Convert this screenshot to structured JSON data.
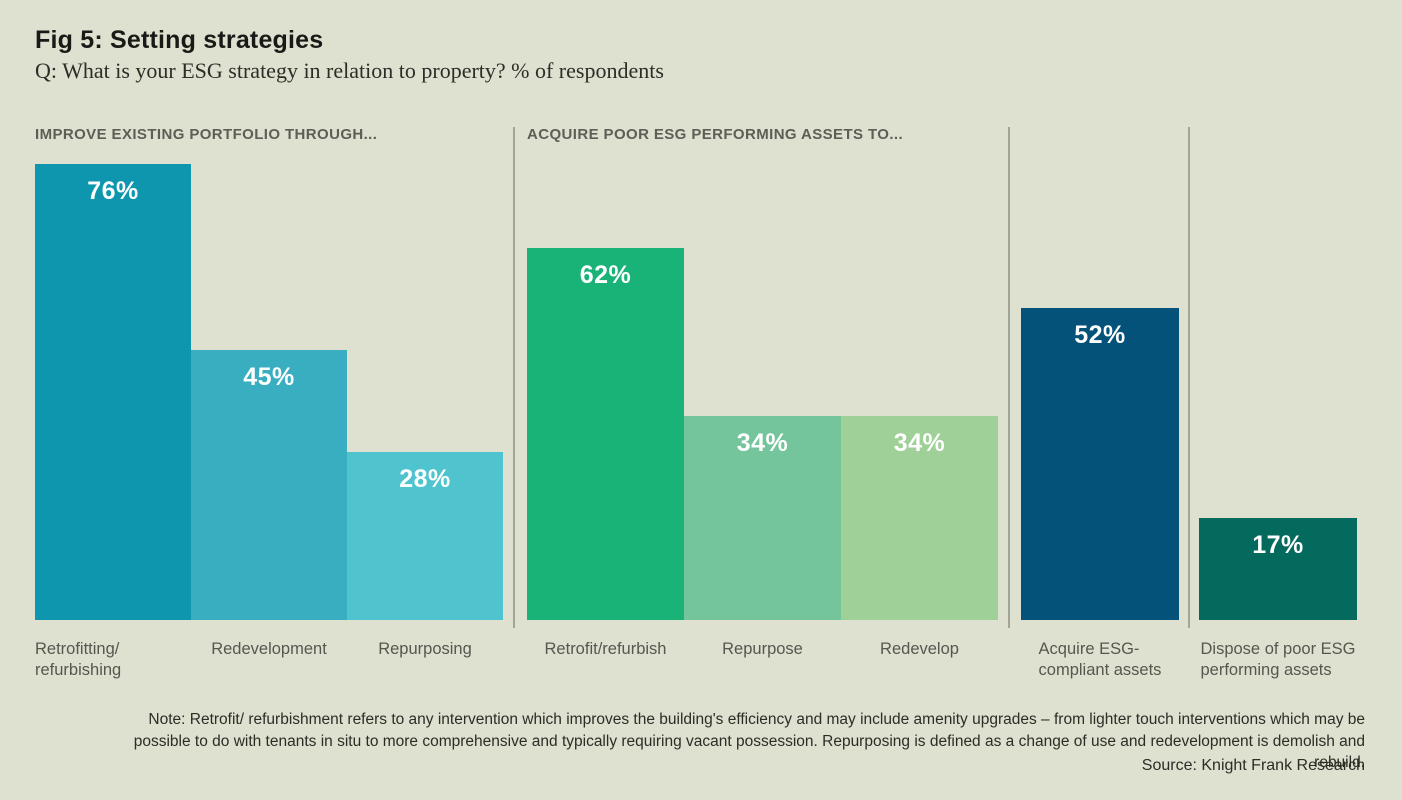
{
  "chart_data": {
    "type": "bar",
    "title": "Fig 5: Setting strategies",
    "subtitle": "Q: What is your ESG strategy in relation to property? % of respondents",
    "value_unit": "%",
    "ylim": [
      0,
      80
    ],
    "grid": false,
    "legend": null,
    "orientation": "vertical, grouped with divider lines",
    "groups": [
      {
        "header": "IMPROVE EXISTING PORTFOLIO THROUGH...",
        "bars": [
          {
            "category": "Retrofitting/\nrefurbishing",
            "value": 76,
            "value_label": "76%",
            "color": "#0d96ad",
            "label_align": "left"
          },
          {
            "category": "Redevelopment",
            "value": 45,
            "value_label": "45%",
            "color": "#3aaec1",
            "label_align": "center"
          },
          {
            "category": "Repurposing",
            "value": 28,
            "value_label": "28%",
            "color": "#4fc4cf",
            "label_align": "center"
          }
        ]
      },
      {
        "header": "ACQUIRE POOR ESG PERFORMING ASSETS TO...",
        "bars": [
          {
            "category": "Retrofit/refurbish",
            "value": 62,
            "value_label": "62%",
            "color": "#19b277",
            "label_align": "center"
          },
          {
            "category": "Repurpose",
            "value": 34,
            "value_label": "34%",
            "color": "#74c59b",
            "label_align": "center"
          },
          {
            "category": "Redevelop",
            "value": 34,
            "value_label": "34%",
            "color": "#9ed097",
            "label_align": "center"
          }
        ]
      },
      {
        "header": "",
        "bars": [
          {
            "category": "Acquire ESG-\ncompliant assets",
            "value": 52,
            "value_label": "52%",
            "color": "#045279",
            "label_align": "center"
          }
        ]
      },
      {
        "header": "",
        "bars": [
          {
            "category": "Dispose of poor ESG\nperforming assets",
            "value": 17,
            "value_label": "17%",
            "color": "#056a5e",
            "label_align": "center"
          }
        ]
      }
    ]
  },
  "note": "Note: Retrofit/ refurbishment refers to any intervention which improves the building's efficiency and may include amenity upgrades – from lighter touch interventions which may be possible to do with tenants in situ to more comprehensive and typically requiring vacant possession. Repurposing is defined as a change of use and redevelopment is demolish and rebuild.",
  "source": "Source: Knight Frank Research",
  "colors": {
    "background": "#dee0d0",
    "divider": "#a2a399",
    "header_text": "#5b5f56",
    "category_text": "#54584e",
    "value_text": "#ffffff"
  }
}
